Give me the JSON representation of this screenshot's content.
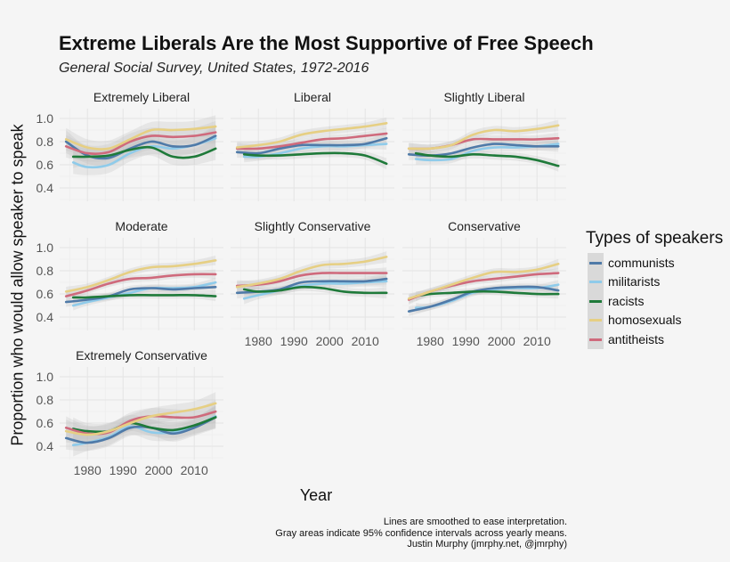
{
  "chart_data": {
    "type": "line",
    "title": "Extreme Liberals Are the Most Supportive of Free Speech",
    "subtitle": "General Social Survey, United States, 1972-2016",
    "xlabel": "Year",
    "ylabel": "Proportion who would allow speaker to speak",
    "xlim": [
      1972.2,
      2018.2
    ],
    "ylim": [
      0.285,
      1.085
    ],
    "x_ticks": [
      1980,
      1990,
      2000,
      2010
    ],
    "x_tick_labels": [
      "1980",
      "1990",
      "2000",
      "2010"
    ],
    "y_ticks": [
      0.4,
      0.6,
      0.8,
      1.0
    ],
    "y_tick_labels": [
      "0.4",
      "0.6",
      "0.8",
      "1.0"
    ],
    "grid": true,
    "legend": {
      "title": "Types of speakers",
      "placement": "right",
      "entries": [
        "communists",
        "militarists",
        "racists",
        "homosexuals",
        "antitheists"
      ]
    },
    "series_colors": {
      "communists": "#4f7aa8",
      "militarists": "#8fcbea",
      "racists": "#1f7a3a",
      "homosexuals": "#e6cf83",
      "antitheists": "#cf6a7c"
    },
    "band_color": "#bdbdbd",
    "years": [
      1974,
      1980,
      1986,
      1992,
      1998,
      2004,
      2010,
      2016
    ],
    "years_from_1976": [
      1976,
      1980,
      1986,
      1992,
      1998,
      2004,
      2010,
      2016
    ],
    "panels": [
      {
        "label": "Extremely Liberal",
        "ci": 0.07,
        "series": {
          "homosexuals": [
            0.82,
            0.75,
            0.74,
            0.82,
            0.9,
            0.9,
            0.91,
            0.93
          ],
          "antitheists": [
            0.76,
            0.7,
            0.71,
            0.8,
            0.85,
            0.84,
            0.85,
            0.88
          ],
          "communists": [
            0.8,
            0.68,
            0.66,
            0.74,
            0.8,
            0.76,
            0.77,
            0.85
          ],
          "militarists": [
            0.62,
            0.58,
            0.6,
            0.7,
            0.76,
            0.74,
            0.77,
            0.83
          ],
          "racists": [
            0.67,
            0.67,
            0.68,
            0.73,
            0.75,
            0.67,
            0.67,
            0.74
          ]
        }
      },
      {
        "label": "Liberal",
        "ci": 0.035,
        "series": {
          "homosexuals": [
            0.75,
            0.77,
            0.8,
            0.86,
            0.89,
            0.91,
            0.93,
            0.96
          ],
          "antitheists": [
            0.74,
            0.74,
            0.76,
            0.79,
            0.82,
            0.83,
            0.85,
            0.87
          ],
          "communists": [
            0.71,
            0.7,
            0.74,
            0.77,
            0.77,
            0.77,
            0.78,
            0.83
          ],
          "militarists": [
            0.67,
            0.67,
            0.7,
            0.74,
            0.76,
            0.76,
            0.77,
            0.78
          ],
          "racists": [
            0.69,
            0.68,
            0.68,
            0.69,
            0.7,
            0.7,
            0.68,
            0.61
          ]
        }
      },
      {
        "label": "Slightly Liberal",
        "ci": 0.035,
        "series": {
          "homosexuals": [
            0.74,
            0.74,
            0.77,
            0.86,
            0.9,
            0.89,
            0.91,
            0.94
          ],
          "antitheists": [
            0.74,
            0.74,
            0.77,
            0.82,
            0.82,
            0.82,
            0.82,
            0.83
          ],
          "communists": [
            0.69,
            0.68,
            0.7,
            0.75,
            0.78,
            0.77,
            0.76,
            0.76
          ],
          "militarists": [
            0.65,
            0.64,
            0.65,
            0.72,
            0.75,
            0.75,
            0.76,
            0.78
          ],
          "racists": [
            0.7,
            0.68,
            0.67,
            0.69,
            0.68,
            0.67,
            0.64,
            0.59
          ]
        }
      },
      {
        "label": "Moderate",
        "ci": 0.03,
        "series": {
          "homosexuals": [
            0.62,
            0.66,
            0.72,
            0.79,
            0.83,
            0.84,
            0.86,
            0.89
          ],
          "antitheists": [
            0.58,
            0.63,
            0.69,
            0.73,
            0.74,
            0.76,
            0.77,
            0.77
          ],
          "communists": [
            0.53,
            0.55,
            0.58,
            0.64,
            0.65,
            0.64,
            0.65,
            0.66
          ],
          "militarists": [
            0.5,
            0.53,
            0.57,
            0.61,
            0.65,
            0.65,
            0.66,
            0.7
          ],
          "racists": [
            0.57,
            0.57,
            0.58,
            0.59,
            0.59,
            0.59,
            0.59,
            0.58
          ]
        }
      },
      {
        "label": "Slightly Conservative",
        "ci": 0.035,
        "series": {
          "homosexuals": [
            0.66,
            0.69,
            0.73,
            0.8,
            0.85,
            0.86,
            0.88,
            0.92
          ],
          "antitheists": [
            0.67,
            0.68,
            0.71,
            0.76,
            0.78,
            0.78,
            0.78,
            0.78
          ],
          "communists": [
            0.61,
            0.62,
            0.64,
            0.7,
            0.71,
            0.71,
            0.71,
            0.73
          ],
          "militarists": [
            0.56,
            0.59,
            0.63,
            0.67,
            0.69,
            0.69,
            0.7,
            0.71
          ],
          "racists": [
            0.64,
            0.62,
            0.63,
            0.66,
            0.65,
            0.62,
            0.61,
            0.61
          ]
        }
      },
      {
        "label": "Conservative",
        "ci": 0.03,
        "series": {
          "homosexuals": [
            0.56,
            0.62,
            0.68,
            0.74,
            0.79,
            0.79,
            0.81,
            0.86
          ],
          "antitheists": [
            0.55,
            0.62,
            0.67,
            0.71,
            0.73,
            0.75,
            0.77,
            0.78
          ],
          "communists": [
            0.45,
            0.49,
            0.55,
            0.62,
            0.65,
            0.66,
            0.66,
            0.63
          ],
          "militarists": [
            0.48,
            0.49,
            0.54,
            0.61,
            0.64,
            0.65,
            0.65,
            0.68
          ],
          "racists": [
            0.58,
            0.6,
            0.61,
            0.62,
            0.62,
            0.61,
            0.6,
            0.6
          ]
        }
      },
      {
        "label": "Extremely Conservative",
        "ci": 0.07,
        "series": {
          "homosexuals": [
            0.53,
            0.5,
            0.53,
            0.6,
            0.66,
            0.69,
            0.72,
            0.77
          ],
          "antitheists": [
            0.56,
            0.51,
            0.52,
            0.62,
            0.66,
            0.65,
            0.65,
            0.7
          ],
          "communists": [
            0.47,
            0.43,
            0.47,
            0.56,
            0.56,
            0.51,
            0.56,
            0.65
          ],
          "militarists": [
            0.41,
            0.43,
            0.48,
            0.57,
            0.52,
            0.52,
            0.57,
            0.66
          ],
          "racists": [
            0.55,
            0.53,
            0.53,
            0.6,
            0.56,
            0.54,
            0.58,
            0.65
          ]
        }
      }
    ],
    "caption": [
      "Lines are smoothed to ease interpretation.",
      "Gray areas indicate 95% confidence intervals across yearly means.",
      "Justin Murphy (jmrphy.net, @jmrphy)"
    ]
  }
}
